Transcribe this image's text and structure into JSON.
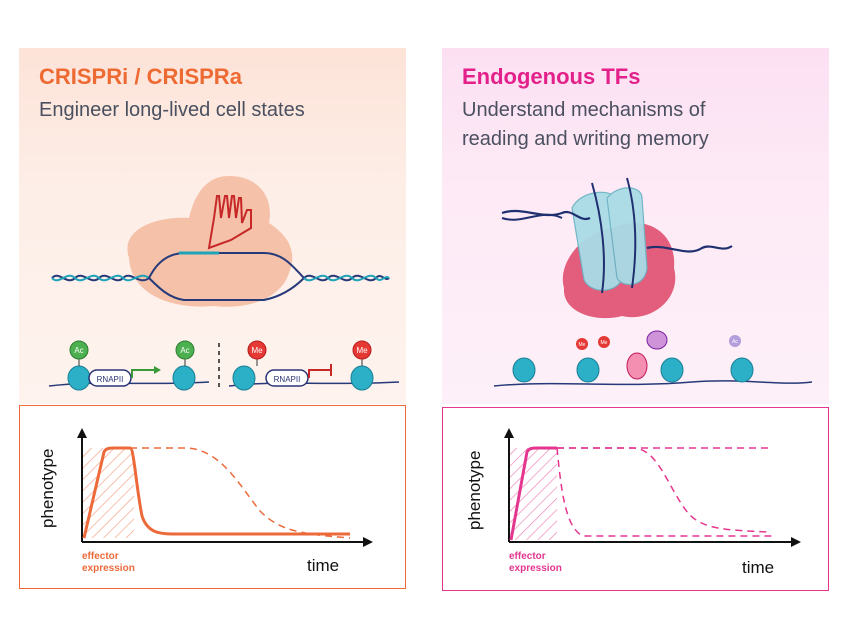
{
  "left": {
    "title": "CRISPRi / CRISPRa",
    "subtitle": "Engineer long-lived cell states",
    "accent": "#ee6a33",
    "labels": {
      "ac": "Ac",
      "me": "Me",
      "rnapii": "RNAPII"
    },
    "chart": {
      "ylabel": "phenotype",
      "xlabel": "time",
      "annotation_line1": "effector",
      "annotation_line2": "expression"
    }
  },
  "right": {
    "title": "Endogenous TFs",
    "subtitle_line1": "Understand mechanisms of",
    "subtitle_line2": "reading and writing memory",
    "accent": "#e3218b",
    "labels": {
      "ac": "Ac",
      "me": "Me"
    },
    "chart": {
      "ylabel": "phenotype",
      "xlabel": "time",
      "annotation_line1": "effector",
      "annotation_line2": "expression"
    }
  }
}
